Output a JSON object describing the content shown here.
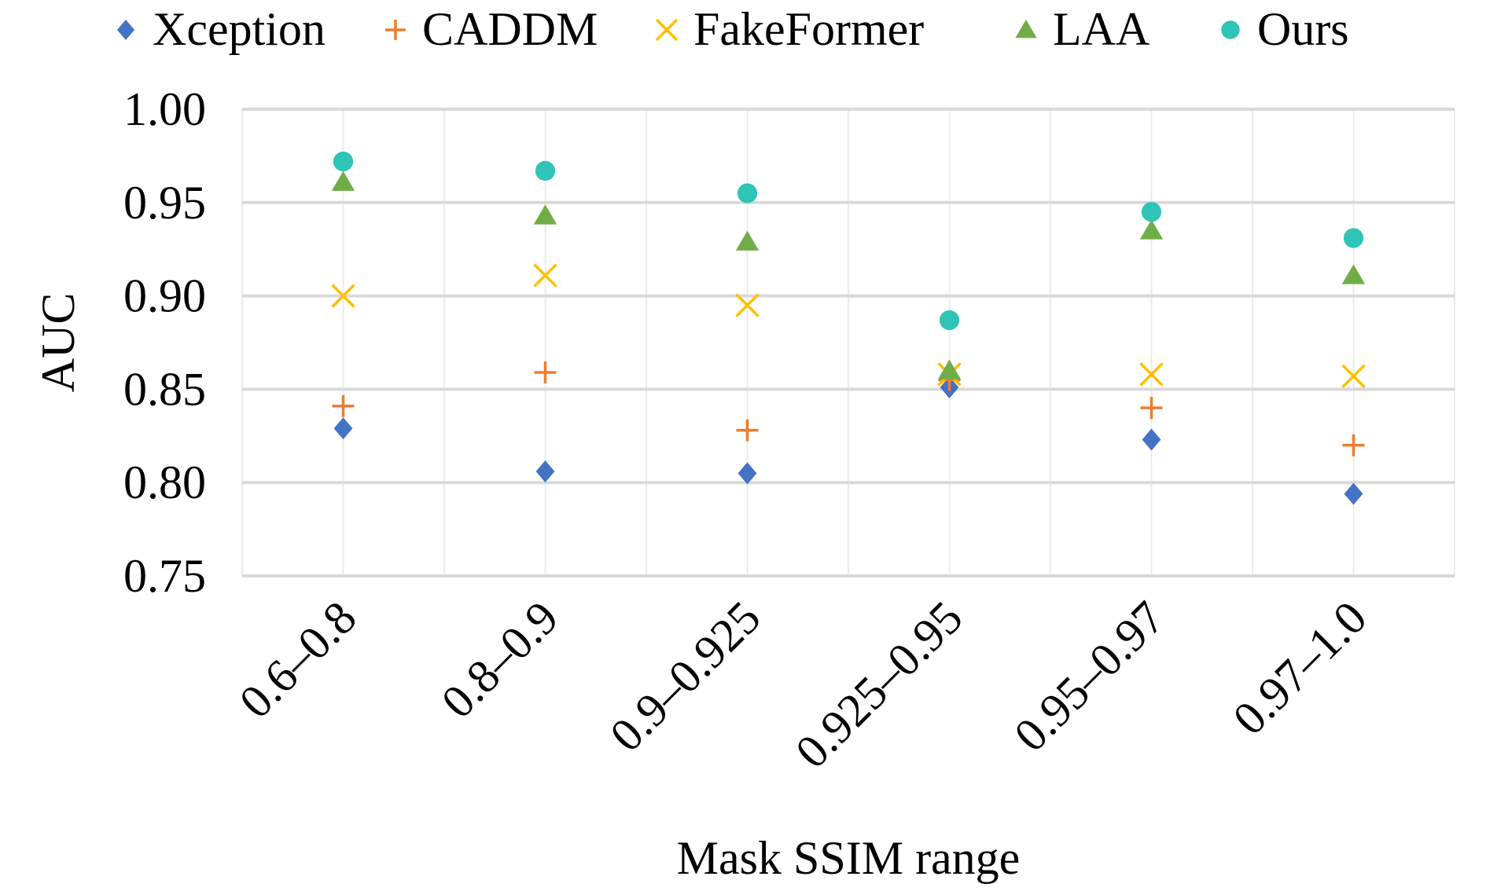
{
  "chart_data": {
    "type": "scatter",
    "title": "",
    "xlabel": "Mask SSIM range",
    "ylabel": "AUC",
    "categories": [
      "0.6–0.8",
      "0.8–0.9",
      "0.9–0.925",
      "0.925–0.95",
      "0.95–0.97",
      "0.97–1.0"
    ],
    "ylim": [
      0.75,
      1.0
    ],
    "yticks": [
      "0.75",
      "0.80",
      "0.85",
      "0.90",
      "0.95",
      "1.00"
    ],
    "grid": true,
    "legend_position": "top",
    "series": [
      {
        "name": "Xception",
        "marker": "diamond",
        "color": "#4472C4",
        "values": [
          0.829,
          0.806,
          0.805,
          0.851,
          0.823,
          0.794
        ]
      },
      {
        "name": "CADDM",
        "marker": "plus",
        "color": "#ED7D31",
        "values": [
          0.841,
          0.859,
          0.828,
          0.855,
          0.84,
          0.82
        ]
      },
      {
        "name": "FakeFormer",
        "marker": "x",
        "color": "#FFC000",
        "values": [
          0.9,
          0.911,
          0.895,
          0.858,
          0.858,
          0.857
        ]
      },
      {
        "name": "LAA",
        "marker": "triangle",
        "color": "#70AD47",
        "values": [
          0.961,
          0.943,
          0.929,
          0.86,
          0.935,
          0.911
        ]
      },
      {
        "name": "Ours",
        "marker": "circle",
        "color": "#2EC4B6",
        "values": [
          0.972,
          0.967,
          0.955,
          0.887,
          0.945,
          0.931
        ]
      }
    ]
  }
}
